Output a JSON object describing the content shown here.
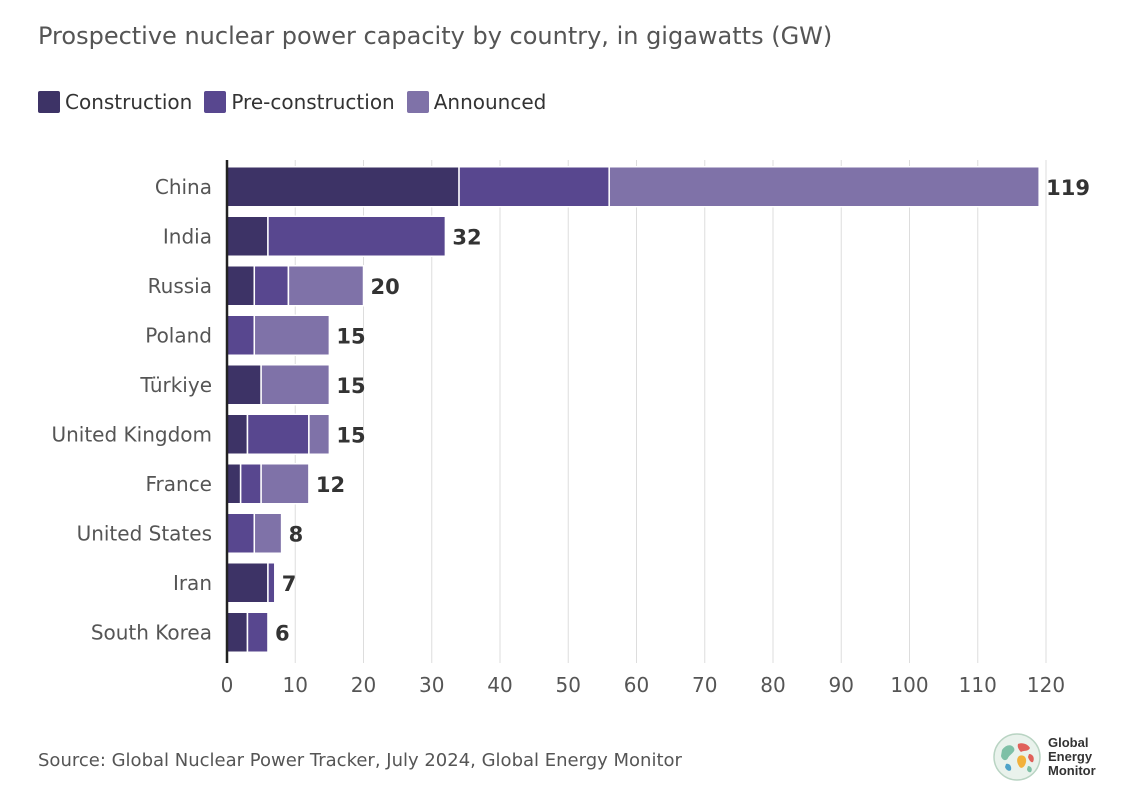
{
  "chart_data": {
    "type": "bar",
    "orientation": "horizontal",
    "stacked": true,
    "title": "Prospective nuclear power capacity by country, in gigawatts (GW)",
    "xlabel": "",
    "ylabel": "",
    "xlim": [
      0,
      120
    ],
    "xticks": [
      0,
      10,
      20,
      30,
      40,
      50,
      60,
      70,
      80,
      90,
      100,
      110,
      120
    ],
    "grid": "vertical",
    "legend_position": "top-left",
    "categories": [
      "China",
      "India",
      "Russia",
      "Poland",
      "Türkiye",
      "United Kingdom",
      "France",
      "United States",
      "Iran",
      "South Korea"
    ],
    "series": [
      {
        "name": "Construction",
        "color": "#3d3366",
        "values": [
          34,
          6,
          4,
          0,
          5,
          3,
          2,
          0,
          6,
          3
        ]
      },
      {
        "name": "Pre-construction",
        "color": "#58478f",
        "values": [
          22,
          26,
          5,
          4,
          0,
          9,
          3,
          4,
          1,
          3
        ]
      },
      {
        "name": "Announced",
        "color": "#7f72a8",
        "values": [
          63,
          0,
          11,
          11,
          10,
          3,
          7,
          4,
          0,
          0
        ]
      }
    ],
    "totals": [
      119,
      32,
      20,
      15,
      15,
      15,
      12,
      8,
      7,
      6
    ]
  },
  "footer": {
    "source": "Source: Global Nuclear Power Tracker, July 2024, Global Energy Monitor",
    "logo_lines": [
      "Global",
      "Energy",
      "Monitor"
    ]
  }
}
